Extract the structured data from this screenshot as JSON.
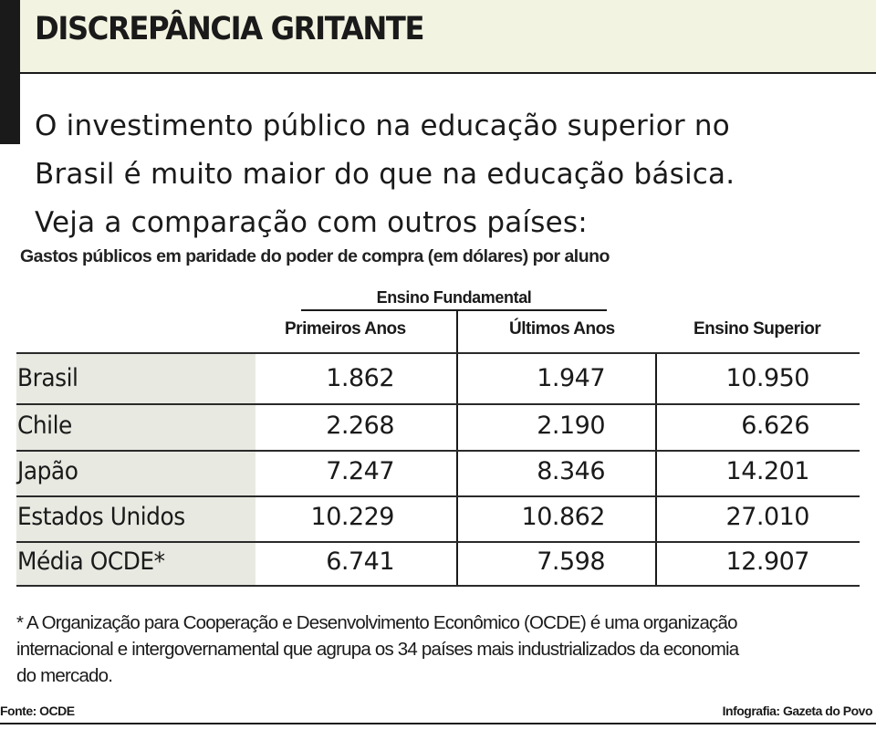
{
  "title": "DISCREPÂNCIA GRITANTE",
  "intro": [
    "O investimento público na educação superior no",
    "Brasil é muito maior do que na educação básica.",
    "Veja a comparação com outros países:"
  ],
  "subtitle": "Gastos públicos em paridade do poder de compra (em dólares) por aluno",
  "table": {
    "group_header": "Ensino Fundamental",
    "columns": [
      "Primeiros  Anos",
      "Últimos Anos",
      "Ensino Superior"
    ],
    "rows": [
      {
        "country": "Brasil",
        "values": [
          "1.862",
          "1.947",
          "10.950"
        ]
      },
      {
        "country": "Chile",
        "values": [
          "2.268",
          "2.190",
          "6.626"
        ]
      },
      {
        "country": "Japão",
        "values": [
          "7.247",
          "8.346",
          "14.201"
        ]
      },
      {
        "country": "Estados Unidos",
        "values": [
          "10.229",
          "10.862",
          "27.010"
        ]
      },
      {
        "country": "Média OCDE*",
        "values": [
          "6.741",
          "7.598",
          "12.907"
        ]
      }
    ]
  },
  "footnote": [
    "* A Organização para Cooperação e Desenvolvimento Econômico (OCDE) é uma organização",
    "internacional e intergovernamental que agrupa os 34 países mais industrializados da economia",
    "do mercado."
  ],
  "source": "Fonte: OCDE",
  "credit": "Infografia: Gazeta do Povo",
  "colors": {
    "header_bg": "#f3f3e1",
    "label_bg": "#e8e9e1",
    "text": "#1a1a1a"
  }
}
